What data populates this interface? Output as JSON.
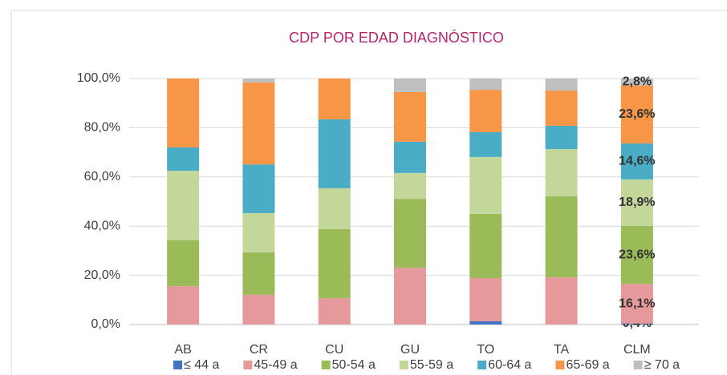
{
  "chart_data": {
    "type": "stacked_bar",
    "title": "CDP POR EDAD DIAGNÓSTICO",
    "categories": [
      "AB",
      "CR",
      "CU",
      "GU",
      "TO",
      "TA",
      "CLM"
    ],
    "series": [
      {
        "name": "≤ 44 a",
        "color": "#4472c4",
        "values": [
          0,
          0,
          0,
          0,
          1.3,
          0,
          0.4
        ],
        "value_labels": [
          null,
          null,
          null,
          null,
          null,
          null,
          "0,4%"
        ]
      },
      {
        "name": "45-49 a",
        "color": "#e6999a",
        "values": [
          15.6,
          12.1,
          10.7,
          23.1,
          17.6,
          19.2,
          16.1
        ],
        "value_labels": [
          null,
          null,
          null,
          null,
          null,
          null,
          "16,1%"
        ]
      },
      {
        "name": "50-54 a",
        "color": "#9bbb59",
        "values": [
          18.6,
          17.2,
          28.1,
          28,
          26.1,
          32.9,
          23.6
        ],
        "value_labels": [
          null,
          null,
          null,
          null,
          null,
          null,
          "23,6%"
        ]
      },
      {
        "name": "55-59 a",
        "color": "#c4d79b",
        "values": [
          28.3,
          16,
          16.6,
          10.5,
          23.1,
          19.2,
          18.9
        ],
        "value_labels": [
          null,
          null,
          null,
          null,
          null,
          null,
          "18,9%"
        ]
      },
      {
        "name": "60-64 a",
        "color": "#4bacc6",
        "values": [
          9.5,
          19.8,
          28,
          12.7,
          10.1,
          9.5,
          14.6
        ],
        "value_labels": [
          null,
          null,
          null,
          null,
          null,
          null,
          "14,6%"
        ]
      },
      {
        "name": "65-69 a",
        "color": "#f79646",
        "values": [
          28,
          33.3,
          16.6,
          20.2,
          17.2,
          14.3,
          23.6
        ],
        "value_labels": [
          null,
          null,
          null,
          null,
          null,
          null,
          "23,6%"
        ]
      },
      {
        "name": "≥ 70 a",
        "color": "#bfbfbf",
        "values": [
          0,
          1.6,
          0,
          5.5,
          4.6,
          4.9,
          2.8
        ],
        "value_labels": [
          null,
          null,
          null,
          null,
          null,
          null,
          "2,8%"
        ]
      }
    ],
    "ylim": [
      0,
      100
    ],
    "yticks": [
      {
        "value": 0,
        "label": "0,0%"
      },
      {
        "value": 20,
        "label": "20,0%"
      },
      {
        "value": 40,
        "label": "40,0%"
      },
      {
        "value": 60,
        "label": "60,0%"
      },
      {
        "value": 80,
        "label": "80,0%"
      },
      {
        "value": 100,
        "label": "100,0%"
      }
    ],
    "grid": true,
    "legend": "bottom"
  }
}
